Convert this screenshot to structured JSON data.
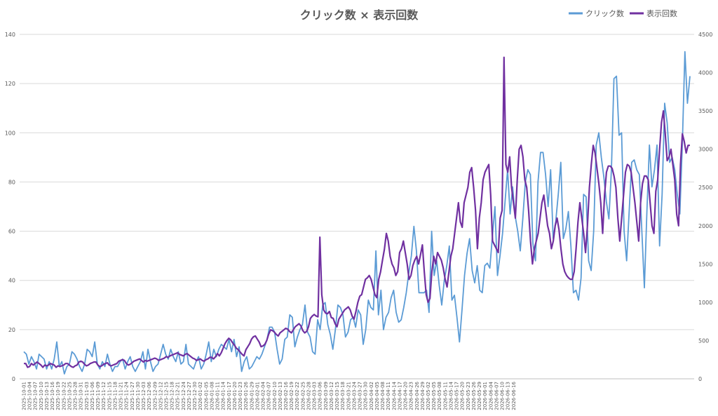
{
  "chart_data": {
    "type": "line",
    "title": "クリック数 × 表示回数",
    "legend_position": "top-right",
    "grid": true,
    "x_start": "2025-10-01",
    "x_tick_labels": [
      "2025-10-01",
      "2025-10-04",
      "2025-10-07",
      "2025-10-10",
      "2025-10-13",
      "2025-10-16",
      "2025-10-19",
      "2025-10-22",
      "2025-10-25",
      "2025-10-28",
      "2025-10-31",
      "2025-11-03",
      "2025-11-06",
      "2025-11-09",
      "2025-11-12",
      "2025-11-15",
      "2025-11-18",
      "2025-11-21",
      "2025-11-24",
      "2025-11-27",
      "2025-11-30",
      "2025-12-03",
      "2025-12-06",
      "2025-12-09",
      "2025-12-12",
      "2025-12-15",
      "2025-12-18",
      "2025-12-21",
      "2025-12-24",
      "2025-12-27",
      "2025-12-30",
      "2026-01-02",
      "2026-01-05",
      "2026-01-08",
      "2026-01-11",
      "2026-01-14",
      "2026-01-17",
      "2026-01-20",
      "2026-01-23",
      "2026-01-26",
      "2026-01-29",
      "2026-02-01",
      "2026-02-04",
      "2026-02-07",
      "2026-02-10",
      "2026-02-13",
      "2026-02-16",
      "2026-02-19",
      "2026-02-22",
      "2026-02-25",
      "2026-02-28",
      "2026-03-03",
      "2026-03-06",
      "2026-03-09",
      "2026-03-12",
      "2026-03-15",
      "2026-03-18",
      "2026-03-21",
      "2026-03-24",
      "2026-03-27",
      "2026-03-30",
      "2026-04-02",
      "2026-04-05",
      "2026-04-08",
      "2026-04-11",
      "2026-04-14",
      "2026-04-17",
      "2026-04-20",
      "2026-04-23",
      "2026-04-26",
      "2026-04-29",
      "2026-05-02",
      "2026-05-05",
      "2026-05-08",
      "2026-05-11",
      "2026-05-14",
      "2026-05-17",
      "2026-05-20",
      "2026-05-23",
      "2026-05-26",
      "2026-05-29",
      "2026-06-01",
      "2026-06-04",
      "2026-06-07",
      "2026-06-10",
      "2026-06-13",
      "2026-06-16"
    ],
    "y_left": {
      "ylim": [
        0,
        140
      ],
      "ticks": [
        "0",
        "20",
        "40",
        "60",
        "80",
        "100",
        "120",
        "140"
      ]
    },
    "y_right": {
      "ylim": [
        0,
        4500
      ],
      "ticks": [
        "0",
        "500",
        "1000",
        "1500",
        "2000",
        "2500",
        "3000",
        "3500",
        "4000",
        "4500"
      ]
    },
    "series": [
      {
        "name": "クリック数",
        "axis": "left",
        "color": "#5b9bd5",
        "values": [
          11,
          10,
          6,
          9,
          7,
          4,
          10,
          9,
          8,
          4,
          7,
          4,
          8,
          15,
          5,
          7,
          2,
          5,
          6,
          11,
          10,
          8,
          5,
          3,
          6,
          12,
          11,
          9,
          15,
          6,
          4,
          7,
          5,
          10,
          6,
          3,
          5,
          5,
          7,
          8,
          4,
          7,
          9,
          5,
          3,
          5,
          7,
          11,
          4,
          12,
          7,
          3,
          5,
          6,
          10,
          14,
          10,
          8,
          12,
          9,
          7,
          11,
          6,
          7,
          14,
          6,
          5,
          4,
          7,
          9,
          4,
          6,
          10,
          15,
          7,
          12,
          9,
          12,
          14,
          13,
          12,
          16,
          11,
          16,
          9,
          13,
          3,
          7,
          9,
          4,
          5,
          7,
          9,
          8,
          10,
          13,
          16,
          21,
          21,
          19,
          12,
          6,
          8,
          16,
          17,
          26,
          25,
          13,
          17,
          20,
          22,
          30,
          19,
          17,
          11,
          10,
          24,
          20,
          30,
          31,
          22,
          18,
          12,
          20,
          30,
          29,
          26,
          17,
          19,
          24,
          25,
          21,
          28,
          26,
          14,
          20,
          32,
          29,
          28,
          52,
          26,
          36,
          20,
          25,
          27,
          33,
          36,
          27,
          23,
          24,
          29,
          35,
          43,
          50,
          62,
          52,
          35,
          35,
          35,
          36,
          27,
          60,
          42,
          48,
          38,
          30,
          40,
          46,
          54,
          32,
          34,
          25,
          15,
          28,
          42,
          51,
          57,
          44,
          39,
          46,
          36,
          35,
          46,
          47,
          45,
          58,
          70,
          42,
          50,
          59,
          72,
          85,
          67,
          78,
          66,
          60,
          52,
          65,
          80,
          85,
          83,
          55,
          48,
          80,
          92,
          92,
          83,
          70,
          85,
          57,
          64,
          75,
          88,
          57,
          61,
          68,
          54,
          35,
          36,
          32,
          41,
          75,
          74,
          48,
          44,
          60,
          95,
          100,
          90,
          82,
          72,
          65,
          85,
          122,
          123,
          99,
          100,
          60,
          48,
          68,
          88,
          89,
          85,
          83,
          60,
          37,
          68,
          95,
          78,
          85,
          95,
          54,
          75,
          112,
          104,
          88,
          90,
          85,
          75,
          67,
          96,
          133,
          112,
          123
        ]
      },
      {
        "name": "表示回数",
        "axis": "right",
        "color": "#7030a0",
        "values": [
          200,
          200,
          150,
          160,
          200,
          180,
          200,
          220,
          200,
          180,
          150,
          180,
          170,
          180,
          200,
          190,
          180,
          150,
          170,
          160,
          170,
          180,
          200,
          200,
          180,
          160,
          150,
          170,
          180,
          220,
          230,
          220,
          190,
          170,
          180,
          200,
          210,
          220,
          220,
          180,
          160,
          170,
          190,
          200,
          210,
          180,
          170,
          180,
          190,
          200,
          230,
          240,
          250,
          240,
          200,
          180,
          190,
          210,
          230,
          240,
          250,
          260,
          240,
          220,
          240,
          230,
          240,
          250,
          260,
          270,
          260,
          240,
          250,
          260,
          270,
          290,
          280,
          300,
          310,
          320,
          330,
          340,
          320,
          310,
          300,
          320,
          330,
          310,
          290,
          270,
          260,
          240,
          250,
          260,
          240,
          230,
          250,
          260,
          280,
          280,
          260,
          290,
          330,
          300,
          340,
          400,
          460,
          500,
          530,
          510,
          470,
          440,
          400,
          380,
          350,
          320,
          300,
          380,
          420,
          460,
          520,
          550,
          560,
          520,
          480,
          420,
          430,
          450,
          500,
          580,
          640,
          630,
          610,
          580,
          560,
          600,
          620,
          640,
          660,
          650,
          620,
          600,
          640,
          680,
          700,
          720,
          690,
          630,
          600,
          620,
          680,
          790,
          820,
          840,
          820,
          810,
          1850,
          1100,
          900,
          860,
          850,
          880,
          800,
          790,
          720,
          680,
          780,
          820,
          860,
          900,
          920,
          940,
          900,
          820,
          780,
          880,
          1000,
          1080,
          1100,
          1200,
          1300,
          1320,
          1350,
          1300,
          1200,
          1100,
          1060,
          1300,
          1400,
          1550,
          1690,
          1900,
          1800,
          1600,
          1500,
          1450,
          1350,
          1400,
          1650,
          1700,
          1800,
          1650,
          1500,
          1300,
          1350,
          1480,
          1550,
          1600,
          1500,
          1620,
          1750,
          1400,
          1100,
          1000,
          1050,
          1400,
          1600,
          1500,
          1650,
          1600,
          1550,
          1450,
          1300,
          1200,
          1400,
          1600,
          1700,
          1900,
          2100,
          2300,
          2050,
          1980,
          2300,
          2400,
          2500,
          2700,
          2760,
          2500,
          2200,
          1700,
          2100,
          2300,
          2600,
          2700,
          2750,
          2800,
          2400,
          1800,
          1750,
          1700,
          1650,
          2100,
          2200,
          4200,
          2800,
          2700,
          2900,
          2500,
          2300,
          2100,
          2600,
          3000,
          3050,
          2900,
          2600,
          2500,
          2200,
          1800,
          1500,
          1700,
          1800,
          1900,
          2100,
          2300,
          2400,
          2200,
          2000,
          1900,
          1700,
          1800,
          2000,
          2100,
          1950,
          1700,
          1500,
          1400,
          1350,
          1320,
          1300,
          1300,
          1400,
          1700,
          2050,
          2300,
          2100,
          1900,
          1650,
          2000,
          2500,
          2800,
          3050,
          2950,
          2750,
          2550,
          2300,
          1900,
          2400,
          2700,
          2780,
          2780,
          2750,
          2650,
          2500,
          2100,
          1800,
          2100,
          2400,
          2700,
          2800,
          2780,
          2700,
          2500,
          2300,
          2050,
          1800,
          2300,
          2550,
          2650,
          2650,
          2600,
          2300,
          2000,
          1900,
          2450,
          2600,
          3000,
          3350,
          3500,
          3200,
          2850,
          2900,
          3000,
          2800,
          2600,
          2150,
          2000,
          2800,
          3200,
          3100,
          2950,
          3050,
          3050
        ]
      }
    ]
  }
}
